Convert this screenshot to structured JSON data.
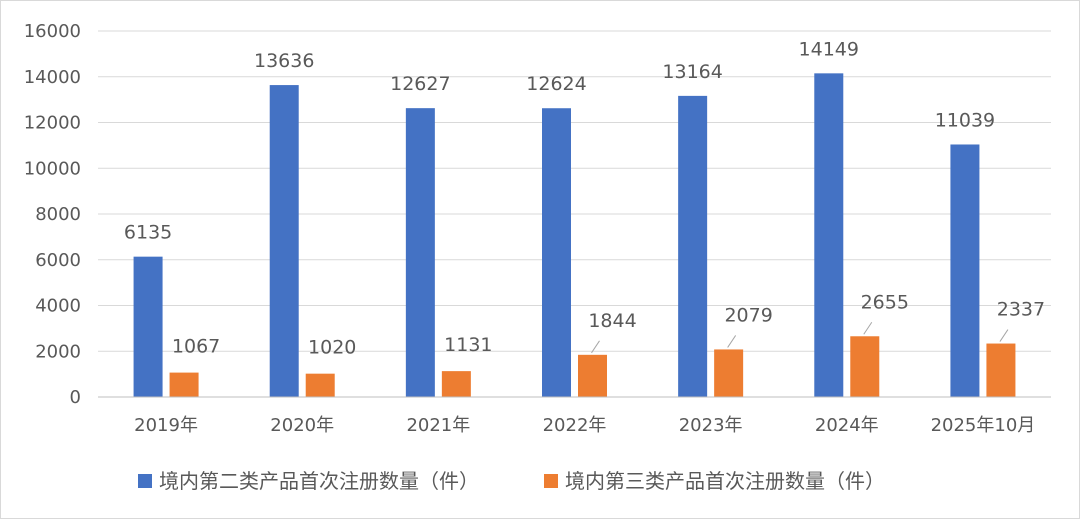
{
  "chart_data": {
    "type": "bar",
    "title": "",
    "xlabel": "",
    "ylabel": "",
    "categories": [
      "2019年",
      "2020年",
      "2021年",
      "2022年",
      "2023年",
      "2024年",
      "2025年10月"
    ],
    "series": [
      {
        "name": "境内第二类产品首次注册数量（件）",
        "values": [
          6135,
          13636,
          12627,
          12624,
          13164,
          14149,
          11039
        ],
        "color": "#4472C4"
      },
      {
        "name": "境内第三类产品首次注册数量（件）",
        "values": [
          1067,
          1020,
          1131,
          1844,
          2079,
          2655,
          2337
        ],
        "color": "#ED7D31"
      }
    ],
    "ylim": [
      0,
      16000
    ],
    "yticks": [
      0,
      2000,
      4000,
      6000,
      8000,
      10000,
      12000,
      14000,
      16000
    ],
    "grid": true,
    "legend_position": "bottom"
  }
}
